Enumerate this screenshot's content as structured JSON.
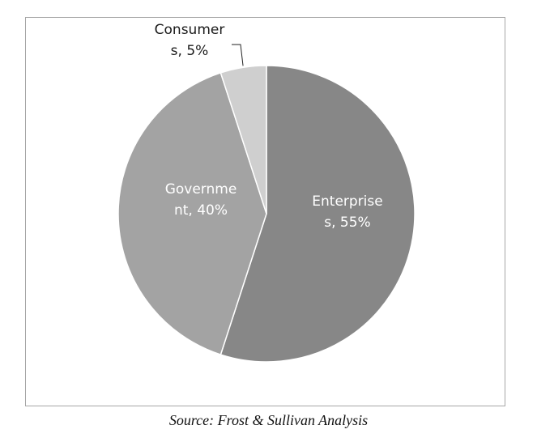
{
  "chart_data": {
    "type": "pie",
    "title": "",
    "slices": [
      {
        "label_lines": [
          "Enterprise",
          "s, 55%"
        ],
        "value": 55,
        "color": "#878787",
        "label_color": "#ffffff"
      },
      {
        "label_lines": [
          "Governme",
          "nt, 40%"
        ],
        "value": 40,
        "color": "#a3a3a3",
        "label_color": "#ffffff"
      },
      {
        "label_lines": [
          "Consumer",
          "s, 5%"
        ],
        "value": 5,
        "color": "#cfcfcf",
        "label_color": "#1a1a1a"
      }
    ],
    "start_angle": "12 o'clock",
    "direction": "clockwise"
  },
  "caption": "Source: Frost & Sullivan Analysis"
}
